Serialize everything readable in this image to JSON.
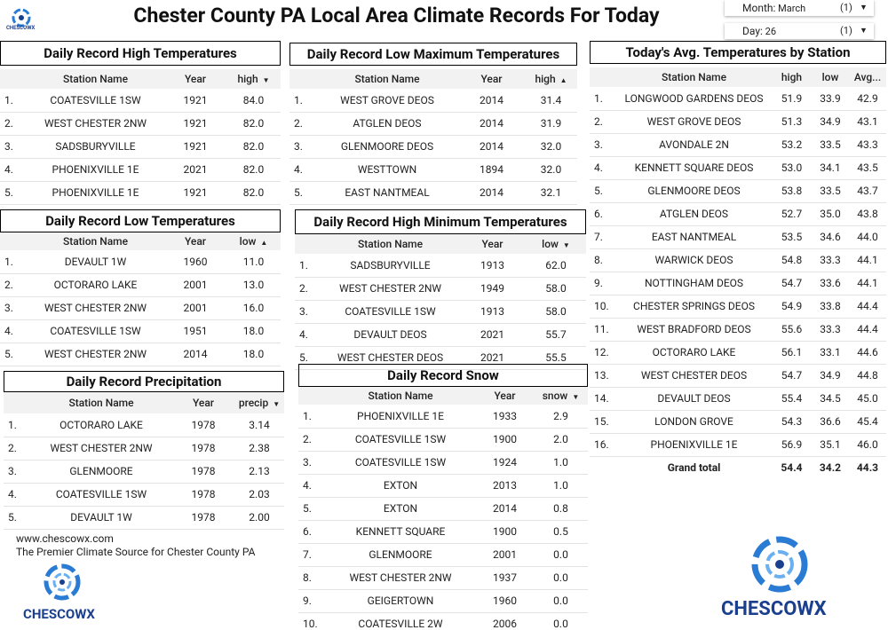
{
  "header": {
    "title": "Chester County PA Local Area Climate Records For Today",
    "logo_text": "CHESCOWX",
    "filters": [
      {
        "label": "Month:",
        "value": "March",
        "count": "(1)"
      },
      {
        "label": "Day:",
        "value": "26",
        "count": "(1)"
      }
    ]
  },
  "tables": [
    {
      "title": "Daily Record High Temperatures",
      "columns": [
        "Station Name",
        "Year",
        "high"
      ],
      "sort": {
        "column": 2,
        "direction": "desc"
      },
      "rows": [
        [
          "1.",
          "COATESVILLE 1SW",
          "1921",
          "84.0"
        ],
        [
          "2.",
          "WEST CHESTER 2NW",
          "1921",
          "82.0"
        ],
        [
          "3.",
          "SADSBURYVILLE",
          "1921",
          "82.0"
        ],
        [
          "4.",
          "PHOENIXVILLE 1E",
          "2021",
          "82.0"
        ],
        [
          "5.",
          "PHOENIXVILLE 1E",
          "1921",
          "82.0"
        ]
      ]
    },
    {
      "title": "Daily Record Low Maximum Temperatures",
      "columns": [
        "Station Name",
        "Year",
        "high"
      ],
      "sort": {
        "column": 2,
        "direction": "asc"
      },
      "rows": [
        [
          "1.",
          "WEST GROVE DEOS",
          "2014",
          "31.4"
        ],
        [
          "2.",
          "ATGLEN DEOS",
          "2014",
          "31.9"
        ],
        [
          "3.",
          "GLENMOORE DEOS",
          "2014",
          "32.0"
        ],
        [
          "4.",
          "WESTTOWN",
          "1894",
          "32.0"
        ],
        [
          "5.",
          "EAST NANTMEAL",
          "2014",
          "32.1"
        ]
      ]
    },
    {
      "title": "Today's Avg. Temperatures by Station",
      "columns": [
        "Station Name",
        "high",
        "low",
        "Avg..."
      ],
      "rows": [
        [
          "1.",
          "LONGWOOD GARDENS DEOS",
          "51.9",
          "33.9",
          "42.9"
        ],
        [
          "2.",
          "WEST GROVE DEOS",
          "51.3",
          "34.9",
          "43.1"
        ],
        [
          "3.",
          "AVONDALE 2N",
          "53.2",
          "33.5",
          "43.3"
        ],
        [
          "4.",
          "KENNETT SQUARE DEOS",
          "53.0",
          "34.1",
          "43.5"
        ],
        [
          "5.",
          "GLENMOORE DEOS",
          "53.8",
          "33.5",
          "43.7"
        ],
        [
          "6.",
          "ATGLEN DEOS",
          "52.7",
          "35.0",
          "43.8"
        ],
        [
          "7.",
          "EAST NANTMEAL",
          "53.5",
          "34.6",
          "44.0"
        ],
        [
          "8.",
          "WARWICK DEOS",
          "54.8",
          "33.3",
          "44.1"
        ],
        [
          "9.",
          "NOTTINGHAM DEOS",
          "54.7",
          "33.6",
          "44.1"
        ],
        [
          "10.",
          "CHESTER SPRINGS DEOS",
          "54.9",
          "33.8",
          "44.4"
        ],
        [
          "11.",
          "WEST BRADFORD DEOS",
          "55.6",
          "33.3",
          "44.4"
        ],
        [
          "12.",
          "OCTORARO LAKE",
          "56.1",
          "33.1",
          "44.6"
        ],
        [
          "13.",
          "WEST CHESTER DEOS",
          "54.7",
          "34.9",
          "44.8"
        ],
        [
          "14.",
          "DEVAULT DEOS",
          "55.4",
          "34.5",
          "45.0"
        ],
        [
          "15.",
          "LONDON GROVE",
          "54.3",
          "36.6",
          "45.4"
        ],
        [
          "16.",
          "PHOENIXVILLE 1E",
          "56.9",
          "35.1",
          "46.0"
        ]
      ],
      "total": [
        "Grand total",
        "54.4",
        "34.2",
        "44.3"
      ]
    },
    {
      "title": "Daily Record Low Temperatures",
      "columns": [
        "Station Name",
        "Year",
        "low"
      ],
      "sort": {
        "column": 2,
        "direction": "asc"
      },
      "rows": [
        [
          "1.",
          "DEVAULT 1W",
          "1960",
          "11.0"
        ],
        [
          "2.",
          "OCTORARO LAKE",
          "2001",
          "13.0"
        ],
        [
          "3.",
          "WEST CHESTER 2NW",
          "2001",
          "16.0"
        ],
        [
          "4.",
          "COATESVILLE 1SW",
          "1951",
          "18.0"
        ],
        [
          "5.",
          "WEST CHESTER 2NW",
          "2014",
          "18.0"
        ]
      ]
    },
    {
      "title": "Daily Record High Minimum Temperatures",
      "columns": [
        "Station Name",
        "Year",
        "low"
      ],
      "sort": {
        "column": 2,
        "direction": "desc"
      },
      "rows": [
        [
          "1.",
          "SADSBURYVILLE",
          "1913",
          "62.0"
        ],
        [
          "2.",
          "WEST CHESTER 2NW",
          "1949",
          "58.0"
        ],
        [
          "3.",
          "COATESVILLE 1SW",
          "1913",
          "58.0"
        ],
        [
          "4.",
          "DEVAULT DEOS",
          "2021",
          "55.7"
        ],
        [
          "5.",
          "WEST CHESTER DEOS",
          "2021",
          "55.5"
        ]
      ]
    },
    {
      "title": "Daily Record Precipitation",
      "columns": [
        "Station Name",
        "Year",
        "precip"
      ],
      "sort": {
        "column": 2,
        "direction": "desc"
      },
      "rows": [
        [
          "1.",
          "OCTORARO LAKE",
          "1978",
          "3.14"
        ],
        [
          "2.",
          "WEST CHESTER 2NW",
          "1978",
          "2.38"
        ],
        [
          "3.",
          "GLENMOORE",
          "1978",
          "2.13"
        ],
        [
          "4.",
          "COATESVILLE 1SW",
          "1978",
          "2.03"
        ],
        [
          "5.",
          "DEVAULT 1W",
          "1978",
          "2.00"
        ]
      ]
    },
    {
      "title": "Daily Record Snow",
      "columns": [
        "Station Name",
        "Year",
        "snow"
      ],
      "sort": {
        "column": 2,
        "direction": "desc"
      },
      "rows": [
        [
          "1.",
          "PHOENIXVILLE 1E",
          "1933",
          "2.9"
        ],
        [
          "2.",
          "COATESVILLE 1SW",
          "1900",
          "2.0"
        ],
        [
          "3.",
          "COATESVILLE 1SW",
          "1924",
          "1.0"
        ],
        [
          "4.",
          "EXTON",
          "2013",
          "1.0"
        ],
        [
          "5.",
          "EXTON",
          "2014",
          "0.8"
        ],
        [
          "6.",
          "KENNETT SQUARE",
          "1900",
          "0.5"
        ],
        [
          "7.",
          "GLENMOORE",
          "2001",
          "0.0"
        ],
        [
          "8.",
          "WEST CHESTER 2NW",
          "1937",
          "0.0"
        ],
        [
          "9.",
          "GEIGERTOWN",
          "1960",
          "0.0"
        ],
        [
          "10.",
          "COATESVILLE 2W",
          "2006",
          "0.0"
        ]
      ]
    }
  ],
  "footer": {
    "url": "www.chescowx.com",
    "tagline": "The Premier Climate Source for Chester County PA",
    "logo_text": "CHESCOWX"
  },
  "brand": {
    "logo_text": "CHESCOWX"
  }
}
